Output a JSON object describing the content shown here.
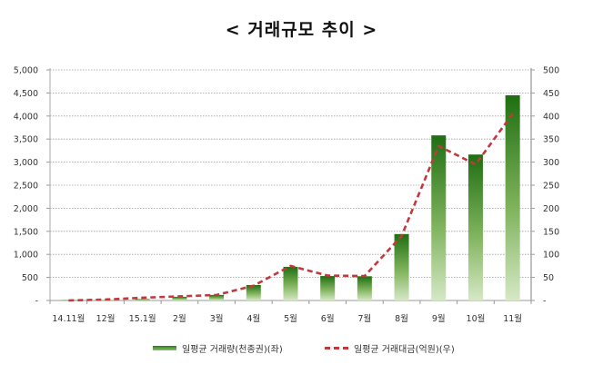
{
  "chart_data": {
    "type": "bar",
    "title": "< 거래규모 추이 >",
    "categories": [
      "14.11월",
      "12월",
      "15.1월",
      "2월",
      "3월",
      "4월",
      "5월",
      "6월",
      "7월",
      "8월",
      "9월",
      "10월",
      "11월"
    ],
    "series": [
      {
        "name": "일평균 거래량(천종권)(좌)",
        "type": "bar",
        "axis": "left",
        "color": "#2e7d1e",
        "values": [
          5,
          10,
          30,
          80,
          120,
          335,
          730,
          530,
          525,
          1440,
          3580,
          3165,
          4450
        ]
      },
      {
        "name": "일평균 거래대금(억원)(우)",
        "type": "line",
        "axis": "right",
        "style": "dashed",
        "color": "#c0393b",
        "values": [
          0,
          2,
          6,
          9,
          12,
          32,
          75,
          54,
          53,
          140,
          335,
          295,
          405
        ]
      }
    ],
    "left_axis": {
      "ylim": [
        0,
        5000
      ],
      "ticks": [
        "-",
        "500",
        "1,000",
        "1,500",
        "2,000",
        "2,500",
        "3,000",
        "3,500",
        "4,000",
        "4,500",
        "5,000"
      ]
    },
    "right_axis": {
      "ylim": [
        0,
        500
      ],
      "ticks": [
        "-",
        "50",
        "100",
        "150",
        "200",
        "250",
        "300",
        "350",
        "400",
        "450",
        "500"
      ]
    },
    "xlabel": "",
    "ylabel": "",
    "grid": true,
    "legend_position": "bottom"
  },
  "legend": {
    "bar_label": "일평균 거래량(천종권)(좌)",
    "line_label": "일평균 거래대금(억원)(우)"
  }
}
